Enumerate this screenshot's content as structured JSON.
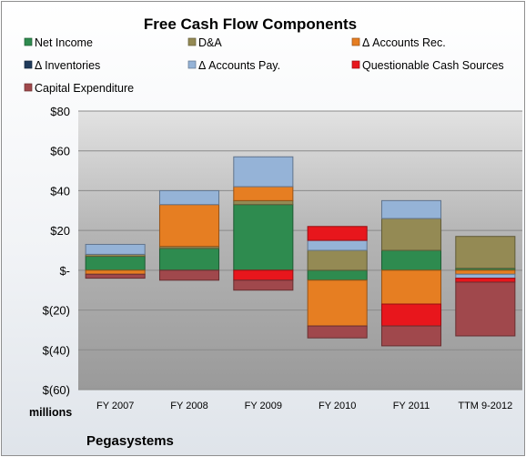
{
  "chart_data": {
    "type": "bar",
    "title": "Free Cash Flow Components",
    "unit_label": "millions",
    "company": "Pegasystems",
    "categories": [
      "FY 2007",
      "FY 2008",
      "FY 2009",
      "FY 2010",
      "FY 2011",
      "TTM 9-2012"
    ],
    "ylim": [
      -60,
      80
    ],
    "yticks": [
      80,
      60,
      40,
      20,
      0,
      -20,
      -40,
      -60
    ],
    "ytick_labels": [
      "$80",
      "$60",
      "$40",
      "$20",
      "$-",
      "$(20)",
      "$(40)",
      "$(60)"
    ],
    "grid": true,
    "legend_position": "top",
    "series": [
      {
        "name": "Net Income",
        "color": "#2e8b4f",
        "values": [
          7,
          11,
          33,
          -5,
          10,
          1
        ]
      },
      {
        "name": "D&A",
        "color": "#948a54",
        "values": [
          1,
          1,
          2,
          10,
          16,
          16
        ]
      },
      {
        "name": "Δ Accounts Rec.",
        "color": "#e67e22",
        "values": [
          -2,
          21,
          7,
          -23,
          -17,
          -2
        ]
      },
      {
        "name": "Δ Inventories",
        "color": "#1f3a5a",
        "values": [
          0,
          0,
          0,
          0,
          0,
          0
        ]
      },
      {
        "name": "Δ Accounts Pay.",
        "color": "#95b3d7",
        "values": [
          5,
          7,
          15,
          5,
          9,
          -2
        ]
      },
      {
        "name": "Questionable Cash Sources",
        "color": "#e8161c",
        "values": [
          0,
          0,
          -5,
          7,
          -11,
          -2
        ]
      },
      {
        "name": "Capital Expenditure",
        "color": "#a0484c",
        "values": [
          -2,
          -5,
          -5,
          -6,
          -10,
          -27
        ]
      }
    ]
  }
}
